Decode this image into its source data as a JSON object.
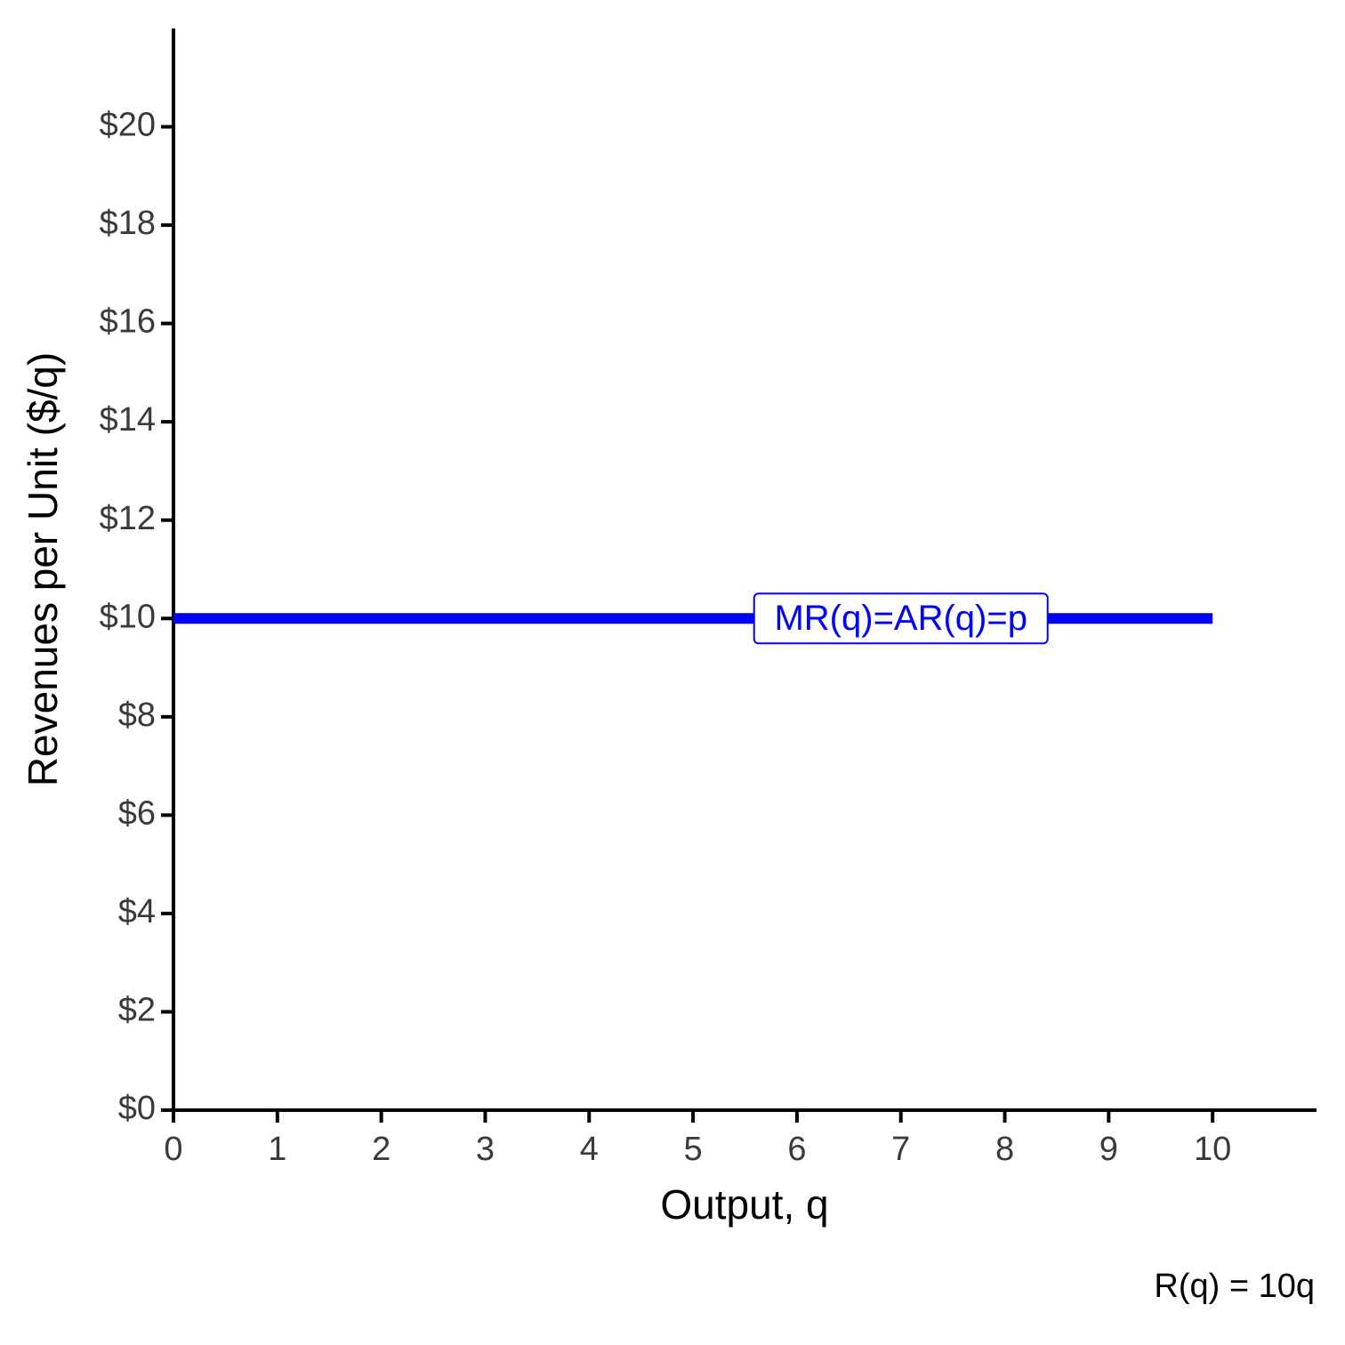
{
  "chart_data": {
    "type": "line",
    "x_label": "Output, q",
    "y_label": "Revenues per Unit ($/q)",
    "caption": "R(q) = 10q",
    "annotation": "MR(q)=AR(q)=p",
    "x": [
      0,
      10
    ],
    "series": [
      {
        "name": "MR(q)=AR(q)=p",
        "color": "#0000ff",
        "values": [
          10,
          10
        ]
      }
    ],
    "xlim": [
      0,
      11
    ],
    "xticks": [
      0,
      1,
      2,
      3,
      4,
      5,
      6,
      7,
      8,
      9,
      10
    ],
    "ylim": [
      0,
      22
    ],
    "yticks": [
      {
        "value": 0,
        "label": "$0"
      },
      {
        "value": 2,
        "label": "$2"
      },
      {
        "value": 4,
        "label": "$4"
      },
      {
        "value": 6,
        "label": "$6"
      },
      {
        "value": 8,
        "label": "$8"
      },
      {
        "value": 10,
        "label": "$10"
      },
      {
        "value": 12,
        "label": "$12"
      },
      {
        "value": 14,
        "label": "$14"
      },
      {
        "value": 16,
        "label": "$16"
      },
      {
        "value": 18,
        "label": "$18"
      },
      {
        "value": 20,
        "label": "$20"
      }
    ],
    "grid": false
  }
}
